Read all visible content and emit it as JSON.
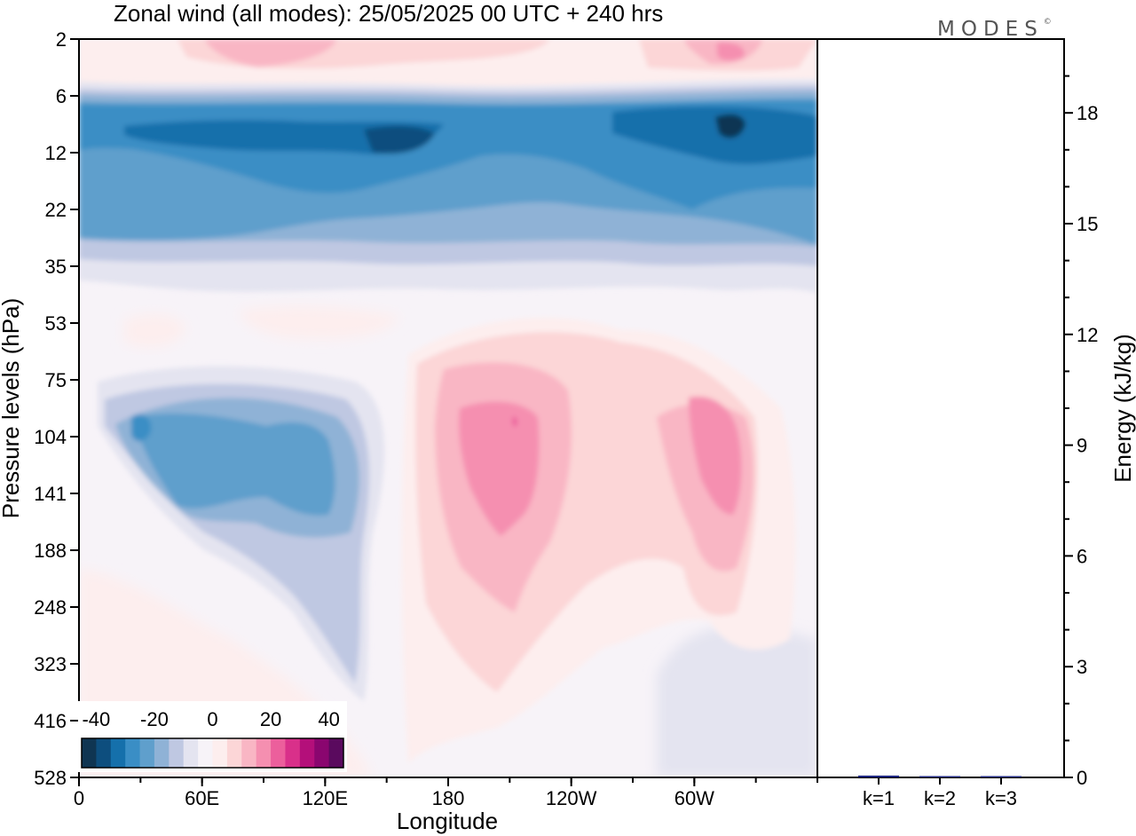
{
  "title": "Zonal wind (all modes):  25/05/2025  00 UTC  + 240 hrs",
  "logo": {
    "text": "MODES",
    "mark": "©"
  },
  "chart_data": [
    {
      "type": "heatmap",
      "title": "Zonal wind (all modes):  25/05/2025  00 UTC  + 240 hrs",
      "xlabel": "Longitude",
      "ylabel": "Pressure levels (hPa)",
      "x_ticks": [
        {
          "lon": 0,
          "label": "0"
        },
        {
          "lon": 60,
          "label": "60E"
        },
        {
          "lon": 120,
          "label": "120E"
        },
        {
          "lon": 180,
          "label": "180"
        },
        {
          "lon": 240,
          "label": "120W"
        },
        {
          "lon": 300,
          "label": "60W"
        }
      ],
      "xlim": [
        0,
        360
      ],
      "y_levels": [
        "2",
        "6",
        "12",
        "22",
        "35",
        "53",
        "75",
        "104",
        "141",
        "188",
        "248",
        "323",
        "416",
        "528"
      ],
      "y_scale": "levels (top = 2 hPa, bottom = 528 hPa)",
      "colorbar": {
        "labels": [
          "-40",
          "-20",
          "0",
          "20",
          "40"
        ],
        "range": [
          -45,
          45
        ],
        "step": 5,
        "colors": [
          "#0f3552",
          "#0d4e7e",
          "#1570ab",
          "#3a8ec5",
          "#5f9fcc",
          "#8fb2d6",
          "#bfc8e2",
          "#e4e4f0",
          "#f7f3f8",
          "#fdeeee",
          "#fcd6d7",
          "#f9b6c4",
          "#f58fb0",
          "#ec5f9c",
          "#d9308a",
          "#b40f7a",
          "#8a066f",
          "#5a0a5e"
        ]
      },
      "regions": [
        {
          "lon": [
            0,
            360
          ],
          "level": "6-22",
          "value": -30
        },
        {
          "lon": [
            0,
            360
          ],
          "level": "2-6",
          "value": 10
        },
        {
          "lon": [
            20,
            150
          ],
          "level": "104-248",
          "value": -15
        },
        {
          "lon": [
            175,
            225
          ],
          "level": "75-248",
          "value": 25
        },
        {
          "lon": [
            285,
            325
          ],
          "level": "104-188",
          "value": 25
        }
      ]
    },
    {
      "type": "bar",
      "categories": [
        "k=1",
        "k=2",
        "k=3"
      ],
      "values": [
        0.05,
        0.02,
        0.01
      ],
      "ylabel": "Energy (kJ/kg)",
      "ylim": [
        0,
        20
      ],
      "y_ticks": [
        0,
        3,
        6,
        9,
        12,
        15,
        18
      ],
      "bar_color": "#1a237e"
    }
  ]
}
